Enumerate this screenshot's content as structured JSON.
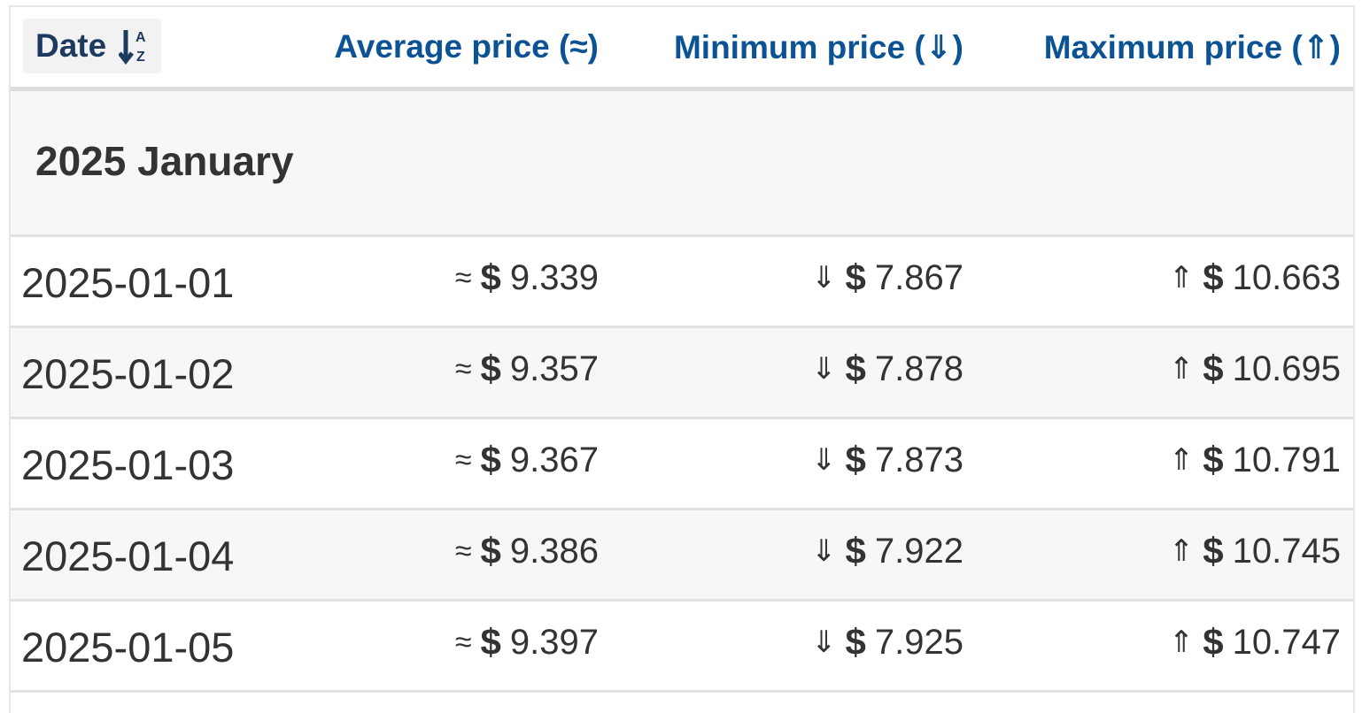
{
  "header": {
    "date_label": "Date",
    "avg_label": "Average price (≈)",
    "min_label": "Minimum price (⇓)",
    "max_label": "Maximum price (⇑)",
    "sort_icon": "sort-alpha-az-icon"
  },
  "month": {
    "label": "2025 January"
  },
  "symbols": {
    "avg": "≈",
    "min": "⇓",
    "max": "⇑",
    "currency": "$"
  },
  "rows": [
    {
      "date": "2025-01-01",
      "avg": "9.339",
      "min": "7.867",
      "max": "10.663"
    },
    {
      "date": "2025-01-02",
      "avg": "9.357",
      "min": "7.878",
      "max": "10.695"
    },
    {
      "date": "2025-01-03",
      "avg": "9.367",
      "min": "7.873",
      "max": "10.791"
    },
    {
      "date": "2025-01-04",
      "avg": "9.386",
      "min": "7.922",
      "max": "10.745"
    },
    {
      "date": "2025-01-05",
      "avg": "9.397",
      "min": "7.925",
      "max": "10.747"
    }
  ],
  "colors": {
    "link": "#0b5394",
    "text": "#333333",
    "row_alt": "#f7f7f7",
    "border": "#e2e2e2"
  }
}
